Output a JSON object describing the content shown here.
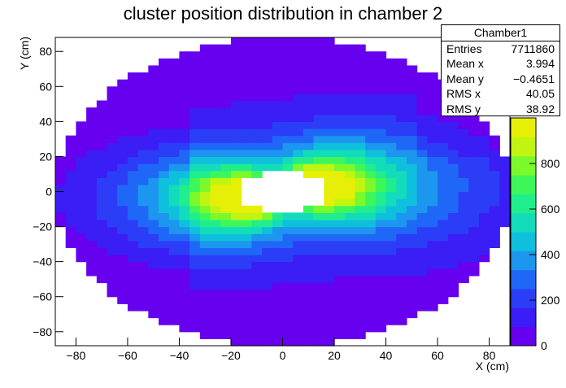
{
  "chart_data": {
    "type": "heatmap",
    "title": "cluster position distribution in chamber 2",
    "xlabel": "X (cm)",
    "ylabel": "Y (cm)",
    "xlim": [
      -88,
      88
    ],
    "ylim": [
      -88,
      88
    ],
    "xticks": [
      -80,
      -60,
      -40,
      -20,
      0,
      20,
      40,
      60,
      80
    ],
    "yticks": [
      -80,
      -60,
      -40,
      -20,
      0,
      20,
      40,
      60,
      80
    ],
    "zlim": [
      0,
      1000
    ],
    "zticks": [
      0,
      200,
      400,
      600,
      800
    ],
    "palette": [
      "#6600ee",
      "#3b1df5",
      "#2c3df7",
      "#1f68f7",
      "#1c96ee",
      "#0fc0dd",
      "#13dcbb",
      "#20ee8c",
      "#3df75a",
      "#7bf92b",
      "#c0f511",
      "#e8ef06"
    ],
    "acceptance": {
      "outer_radius": 82,
      "inner_radius_x": 18,
      "inner_radius_y": 11
    },
    "grid": false,
    "stats": {
      "title": "Chamber1",
      "rows": [
        {
          "label": "Entries",
          "value": "7711860"
        },
        {
          "label": "Mean x",
          "value": "3.994"
        },
        {
          "label": "Mean y",
          "value": "−0.4651"
        },
        {
          "label": "RMS x",
          "value": "40.05"
        },
        {
          "label": "RMS y",
          "value": "38.92"
        }
      ]
    }
  }
}
